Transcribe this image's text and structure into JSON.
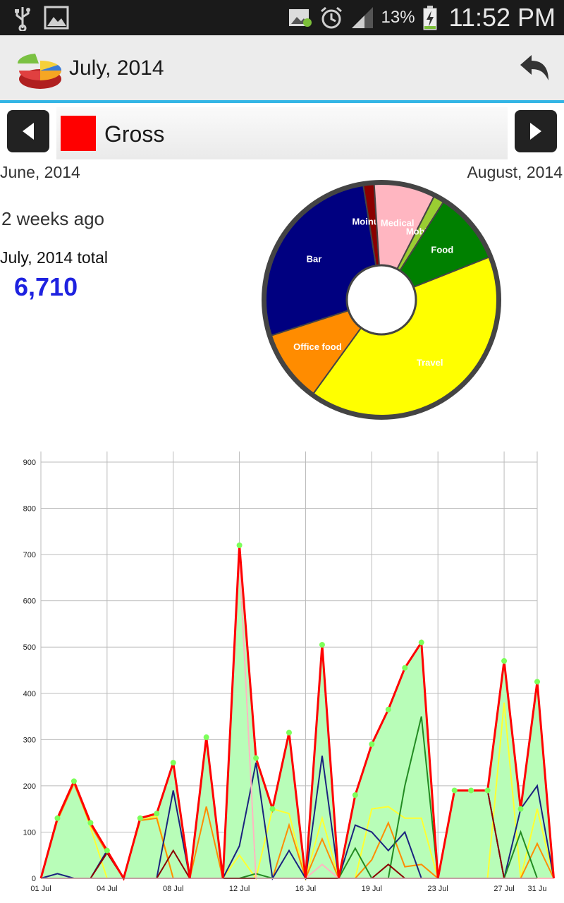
{
  "status_bar": {
    "battery": "13%",
    "time": "11:52 PM",
    "icons": [
      "usb-icon",
      "gallery-icon",
      "image-notification-icon",
      "alarm-icon",
      "signal-icon",
      "battery-charging-icon"
    ]
  },
  "header": {
    "title": "July, 2014",
    "logo_icon": "pie-chart-logo-icon",
    "back_icon": "undo-arrow-icon"
  },
  "category": {
    "label": "Gross",
    "color": "#ff0000",
    "prev_icon": "arrow-left-icon",
    "next_icon": "arrow-right-icon"
  },
  "navigation": {
    "prev_month": "June, 2014",
    "next_month": "August, 2014"
  },
  "summary": {
    "ago": "2 weeks ago",
    "total_label": "July, 2014 total",
    "total_value": "6,710"
  },
  "pie_data": {
    "type": "pie",
    "slices": [
      {
        "label": "Bar",
        "value": 27.5,
        "color": "#000080"
      },
      {
        "label": "Moinul Bi",
        "value": 1.5,
        "color": "#8b0000"
      },
      {
        "label": "Medical",
        "value": 8.5,
        "color": "#ffb6c1"
      },
      {
        "label": "Mobile",
        "value": 1.5,
        "color": "#9acd32"
      },
      {
        "label": "Food",
        "value": 10.0,
        "color": "#008000"
      },
      {
        "label": "Travel",
        "value": 41.0,
        "color": "#ffff00"
      },
      {
        "label": "Office food",
        "value": 10.0,
        "color": "#ff8c00"
      }
    ]
  },
  "chart_data": {
    "type": "line",
    "ylim": [
      0,
      900
    ],
    "yticks": [
      0,
      100,
      200,
      300,
      400,
      500,
      600,
      700,
      800,
      900
    ],
    "xlim": [
      1,
      31
    ],
    "x_ticks": [
      {
        "day": 1,
        "label": "01 Jul"
      },
      {
        "day": 5,
        "label": "04 Jul"
      },
      {
        "day": 9,
        "label": "08 Jul"
      },
      {
        "day": 13,
        "label": "12 Jul"
      },
      {
        "day": 17,
        "label": "16 Jul"
      },
      {
        "day": 21,
        "label": "19 Jul"
      },
      {
        "day": 25,
        "label": "23 Jul"
      },
      {
        "day": 29,
        "label": "27 Jul"
      },
      {
        "day": 31,
        "label": "31 Ju"
      }
    ],
    "x": [
      1,
      2,
      3,
      4,
      5,
      6,
      7,
      8,
      9,
      10,
      11,
      12,
      13,
      14,
      15,
      16,
      17,
      18,
      19,
      20,
      21,
      22,
      23,
      24,
      25,
      26,
      27,
      28,
      29,
      30,
      31,
      32
    ],
    "gross": {
      "name": "Gross",
      "color": "#ff0000",
      "area_color": "#b8fdb8",
      "values": [
        0,
        130,
        210,
        120,
        60,
        0,
        130,
        140,
        250,
        0,
        305,
        0,
        720,
        260,
        150,
        315,
        0,
        505,
        0,
        180,
        290,
        365,
        455,
        510,
        0,
        190,
        190,
        190,
        470,
        150,
        425,
        0
      ]
    },
    "series": [
      {
        "color": "#ffff30",
        "values": [
          0,
          130,
          210,
          110,
          0,
          0,
          125,
          135,
          0,
          0,
          0,
          0,
          50,
          0,
          150,
          140,
          0,
          130,
          0,
          0,
          150,
          155,
          130,
          130,
          0,
          0,
          0,
          0,
          380,
          0,
          150,
          0
        ]
      },
      {
        "color": "#ff8c00",
        "values": [
          0,
          125,
          205,
          115,
          55,
          0,
          125,
          130,
          0,
          0,
          155,
          0,
          0,
          0,
          0,
          115,
          0,
          85,
          0,
          0,
          40,
          120,
          25,
          30,
          0,
          0,
          0,
          0,
          0,
          0,
          75,
          0
        ]
      },
      {
        "color": "#1a237e",
        "values": [
          0,
          10,
          0,
          0,
          60,
          0,
          0,
          0,
          190,
          0,
          0,
          0,
          70,
          250,
          0,
          60,
          0,
          265,
          0,
          115,
          100,
          60,
          100,
          0,
          0,
          190,
          190,
          190,
          0,
          150,
          200,
          0
        ]
      },
      {
        "color": "#228b22",
        "values": [
          0,
          0,
          0,
          0,
          0,
          0,
          0,
          0,
          0,
          0,
          0,
          0,
          0,
          10,
          0,
          0,
          0,
          0,
          0,
          65,
          0,
          0,
          200,
          350,
          0,
          0,
          0,
          0,
          0,
          100,
          0,
          0
        ]
      },
      {
        "color": "#8b0000",
        "values": [
          0,
          0,
          0,
          0,
          55,
          0,
          0,
          0,
          60,
          0,
          0,
          0,
          0,
          0,
          0,
          0,
          0,
          0,
          0,
          0,
          0,
          30,
          0,
          0,
          0,
          190,
          190,
          190,
          0,
          0,
          0,
          0
        ]
      },
      {
        "color": "#ffb6c1",
        "values": [
          0,
          0,
          0,
          0,
          0,
          0,
          0,
          0,
          0,
          0,
          0,
          0,
          690,
          0,
          0,
          0,
          0,
          30,
          0,
          0,
          0,
          0,
          0,
          0,
          0,
          0,
          0,
          0,
          0,
          0,
          0,
          0
        ]
      }
    ]
  }
}
